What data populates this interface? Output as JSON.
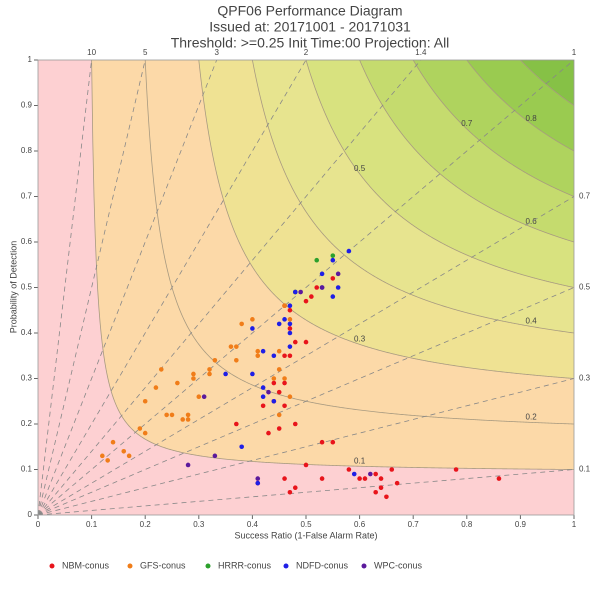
{
  "chart_data": {
    "type": "performance",
    "title": "QPF06 Performance Diagram",
    "subtitle": "Issued at: 20171001 - 20171031",
    "subtitle2": "Threshold: >=0.25 Init Time:00 Projection: All",
    "xlabel": "Success Ratio (1-False Alarm Rate)",
    "ylabel": "Probability of Detection",
    "xlim": [
      0,
      1
    ],
    "ylim": [
      0,
      1
    ],
    "xticks": [
      0,
      0.1,
      0.2,
      0.3,
      0.4,
      0.5,
      0.6,
      0.7,
      0.8,
      0.9,
      1
    ],
    "yticks": [
      0,
      0.1,
      0.2,
      0.3,
      0.4,
      0.5,
      0.6,
      0.7,
      0.8,
      0.9,
      1
    ],
    "bias_lines": [
      10,
      5,
      3,
      2,
      1.4,
      1,
      0.7,
      0.5,
      0.3,
      0.1
    ],
    "csi_levels": [
      0.1,
      0.2,
      0.3,
      0.4,
      0.5,
      0.6,
      0.7,
      0.8,
      0.9
    ],
    "csi_colors": [
      "#fdd0d2",
      "#fcd9a8",
      "#fcd9a8",
      "#efe293",
      "#e7e48f",
      "#d8e27f",
      "#c5db6e",
      "#afd35e",
      "#9acb50",
      "#86c146"
    ],
    "series": [
      {
        "name": "NBM-conus",
        "color": "#e8141b",
        "x": [
          0.46,
          0.47,
          0.5,
          0.51,
          0.52,
          0.55,
          0.47,
          0.48,
          0.5,
          0.46,
          0.47,
          0.44,
          0.45,
          0.46,
          0.44,
          0.46,
          0.42,
          0.43,
          0.45,
          0.48,
          0.53,
          0.55,
          0.37,
          0.5,
          0.53,
          0.41,
          0.46,
          0.47,
          0.48,
          0.58,
          0.6,
          0.61,
          0.63,
          0.63,
          0.64,
          0.65,
          0.66,
          0.67,
          0.78,
          0.86,
          0.64
        ],
        "y": [
          0.46,
          0.45,
          0.47,
          0.48,
          0.5,
          0.52,
          0.41,
          0.38,
          0.38,
          0.35,
          0.35,
          0.29,
          0.27,
          0.29,
          0.25,
          0.24,
          0.24,
          0.18,
          0.19,
          0.2,
          0.16,
          0.16,
          0.2,
          0.11,
          0.08,
          0.07,
          0.08,
          0.05,
          0.06,
          0.1,
          0.08,
          0.08,
          0.09,
          0.05,
          0.08,
          0.04,
          0.1,
          0.07,
          0.1,
          0.08,
          0.06
        ]
      },
      {
        "name": "GFS-conus",
        "color": "#f07d19",
        "x": [
          0.12,
          0.13,
          0.14,
          0.16,
          0.17,
          0.19,
          0.2,
          0.2,
          0.22,
          0.24,
          0.25,
          0.26,
          0.27,
          0.28,
          0.28,
          0.29,
          0.29,
          0.3,
          0.32,
          0.32,
          0.33,
          0.36,
          0.37,
          0.37,
          0.38,
          0.4,
          0.41,
          0.41,
          0.46,
          0.48,
          0.45,
          0.47,
          0.45,
          0.46,
          0.47,
          0.44,
          0.45,
          0.23
        ],
        "y": [
          0.13,
          0.12,
          0.16,
          0.14,
          0.13,
          0.19,
          0.18,
          0.25,
          0.28,
          0.22,
          0.22,
          0.29,
          0.21,
          0.21,
          0.22,
          0.31,
          0.3,
          0.26,
          0.31,
          0.32,
          0.34,
          0.37,
          0.34,
          0.37,
          0.42,
          0.43,
          0.35,
          0.36,
          0.46,
          0.49,
          0.36,
          0.43,
          0.32,
          0.3,
          0.26,
          0.3,
          0.22,
          0.32
        ]
      },
      {
        "name": "HRRR-conus",
        "color": "#2ca02c",
        "x": [
          0.52,
          0.55,
          0.48
        ],
        "y": [
          0.56,
          0.57,
          0.49
        ]
      },
      {
        "name": "NDFD-conus",
        "color": "#1f1fe6",
        "x": [
          0.58,
          0.55,
          0.53,
          0.53,
          0.56,
          0.55,
          0.48,
          0.47,
          0.46,
          0.45,
          0.47,
          0.47,
          0.42,
          0.44,
          0.47,
          0.4,
          0.4,
          0.42,
          0.42,
          0.44,
          0.35,
          0.38,
          0.41,
          0.59
        ],
        "y": [
          0.58,
          0.56,
          0.53,
          0.5,
          0.5,
          0.48,
          0.49,
          0.46,
          0.43,
          0.42,
          0.42,
          0.4,
          0.36,
          0.35,
          0.37,
          0.41,
          0.31,
          0.28,
          0.26,
          0.25,
          0.31,
          0.15,
          0.07,
          0.09
        ]
      },
      {
        "name": "WPC-conus",
        "color": "#5b1a9c",
        "x": [
          0.56,
          0.53,
          0.49,
          0.31,
          0.28,
          0.33,
          0.41,
          0.62,
          0.43
        ],
        "y": [
          0.53,
          0.5,
          0.49,
          0.26,
          0.11,
          0.13,
          0.08,
          0.09,
          0.27
        ]
      }
    ]
  }
}
